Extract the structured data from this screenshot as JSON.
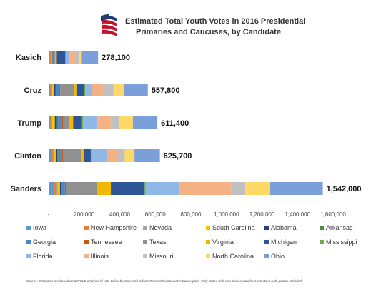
{
  "chart_data": {
    "type": "bar",
    "orientation": "horizontal",
    "stacked": true,
    "title_lines": [
      "Estimated Total Youth Votes in 2016 Presidential",
      "Primaries and Caucuses, by Candidate"
    ],
    "categories": [
      "Kasich",
      "Cruz",
      "Trump",
      "Clinton",
      "Sanders"
    ],
    "totals": [
      278100,
      557800,
      611400,
      625700,
      1542000
    ],
    "totals_labels": [
      "278,100",
      "557,800",
      "611,400",
      "625,700",
      "1,542,000"
    ],
    "xlim": [
      0,
      1600000
    ],
    "xticks": [
      0,
      200000,
      400000,
      600000,
      800000,
      1000000,
      1200000,
      1400000,
      1600000
    ],
    "xtick_labels": [
      "-",
      "200,000",
      "400,000",
      "600,000",
      "800,000",
      "1,000,000",
      "1,200,000",
      "1,400,000",
      "1,600,000"
    ],
    "legend_position": "bottom",
    "series": [
      {
        "name": "Iowa",
        "color": "#5b9bd5",
        "values": [
          3000,
          10000,
          10000,
          18000,
          28000
        ]
      },
      {
        "name": "New Hampshire",
        "color": "#ed7d31",
        "values": [
          12000,
          8000,
          8000,
          8000,
          16000
        ]
      },
      {
        "name": "Nevada",
        "color": "#a5a5a5",
        "values": [
          1000,
          2000,
          2000,
          3000,
          8000
        ]
      },
      {
        "name": "South Carolina",
        "color": "#ffc000",
        "values": [
          3000,
          10000,
          15000,
          13000,
          12000
        ]
      },
      {
        "name": "Alabama",
        "color": "#264478",
        "values": [
          2000,
          8000,
          12000,
          7000,
          6000
        ]
      },
      {
        "name": "Arkansas",
        "color": "#4f8a3c",
        "values": [
          1000,
          5000,
          6000,
          6000,
          4000
        ]
      },
      {
        "name": "Georgia",
        "color": "#4a86c8",
        "values": [
          4000,
          15000,
          22000,
          20000,
          18000
        ]
      },
      {
        "name": "Tennessee",
        "color": "#c55a11",
        "values": [
          2000,
          7000,
          8000,
          7000,
          8000
        ]
      },
      {
        "name": "Texas",
        "color": "#909090",
        "values": [
          8000,
          80000,
          35000,
          100000,
          170000
        ]
      },
      {
        "name": "Virginia",
        "color": "#f2b800",
        "values": [
          10000,
          15000,
          20000,
          15000,
          80000
        ]
      },
      {
        "name": "Michigan",
        "color": "#2e5597",
        "values": [
          48000,
          40000,
          50000,
          40000,
          190000
        ]
      },
      {
        "name": "Mississippi",
        "color": "#70ad47",
        "values": [
          2000,
          5000,
          6000,
          6000,
          6000
        ]
      },
      {
        "name": "Florida",
        "color": "#8fb8e8",
        "values": [
          20000,
          40000,
          80000,
          85000,
          190000
        ]
      },
      {
        "name": "Illinois",
        "color": "#f4b183",
        "values": [
          40000,
          60000,
          75000,
          55000,
          290000
        ]
      },
      {
        "name": "Missouri",
        "color": "#c0c0c0",
        "values": [
          15000,
          60000,
          45000,
          45000,
          80000
        ]
      },
      {
        "name": "North Carolina",
        "color": "#ffd966",
        "values": [
          15000,
          60000,
          80000,
          55000,
          140000
        ]
      },
      {
        "name": "Ohio",
        "color": "#7b9fd8",
        "values": [
          92100,
          132800,
          137400,
          142700,
          296000
        ]
      }
    ]
  },
  "source_note": "Source:  Estimates are based on CIRCLE analysis of vote tallies by state and Edison Research state exit/entrance polls.  Only states with vote choice data for contests in both parties included."
}
